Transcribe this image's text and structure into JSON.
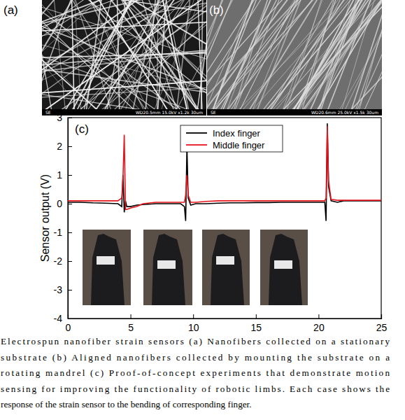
{
  "images": [
    {
      "label": "(a)",
      "footer": [
        "SE",
        "WD20.5mm 15.0kV x1.2k 30um"
      ]
    },
    {
      "label": "(b)",
      "footer": [
        "SE",
        "WD20.6mm 25.0kV x1.5k 30um"
      ]
    }
  ],
  "chart_data": {
    "type": "line",
    "annotations": [
      "(c)"
    ],
    "y_label": "Sensor output (V)",
    "x": [
      0,
      1,
      2,
      3,
      4,
      4.3,
      4.4,
      4.5,
      4.6,
      4.7,
      5,
      5.5,
      6,
      7,
      8,
      9,
      9.3,
      9.4,
      9.5,
      9.6,
      9.8,
      10.2,
      11,
      12,
      13,
      14,
      15,
      16,
      17,
      18,
      19,
      20,
      20.5,
      20.6,
      20.7,
      20.8,
      21,
      21.5,
      22,
      23,
      24,
      25
    ],
    "series": [
      {
        "name": "Index finger",
        "color": "#000000",
        "values": [
          0.05,
          0.05,
          0.03,
          0.02,
          0,
          -0.1,
          1.0,
          -0.3,
          0.1,
          -0.1,
          -0.1,
          -0.05,
          -0.03,
          0,
          0,
          0,
          -0.1,
          -0.6,
          2.0,
          0.2,
          -0.05,
          0,
          0,
          0.02,
          0.03,
          0.03,
          0.04,
          0.04,
          0.05,
          0.05,
          0.05,
          0.05,
          0.05,
          -0.6,
          2.8,
          0.6,
          0.1,
          0.05,
          0.1,
          0.1,
          0.1,
          0.1
        ]
      },
      {
        "name": "Middle finger",
        "color": "#e8141c",
        "values": [
          0.1,
          0.1,
          0.1,
          0.1,
          0.1,
          0.2,
          0.9,
          2.4,
          -0.2,
          -0.2,
          -0.15,
          -0.1,
          0,
          0.05,
          0.05,
          0.05,
          0.05,
          0.3,
          1.0,
          0.3,
          0.05,
          0.05,
          0.08,
          0.1,
          0.1,
          0.1,
          0.1,
          0.1,
          0.1,
          0.1,
          0.1,
          0.1,
          0.1,
          0.2,
          2.7,
          0.8,
          0.15,
          0.12,
          0.12,
          0.12,
          0.12,
          0.12
        ]
      }
    ],
    "xlim": [
      0,
      25
    ],
    "xticks": [
      0,
      5,
      10,
      15,
      20,
      25
    ],
    "ylim": [
      -4,
      3
    ],
    "yticks": [
      -4,
      -3,
      -2,
      -1,
      0,
      1,
      2,
      3
    ],
    "legend": "top",
    "grid": false
  },
  "caption": [
    "Electrospun nanofiber strain sensors (a) Nanofibers collected on a stationary",
    "substrate (b) Aligned nanofibers collected by mounting the substrate on a",
    "rotating mandrel (c) Proof-of-concept experiments that demonstrate motion",
    "sensing for improving the functionality of robotic limbs. Each case shows the",
    "response of the strain sensor to the bending of corresponding finger."
  ]
}
